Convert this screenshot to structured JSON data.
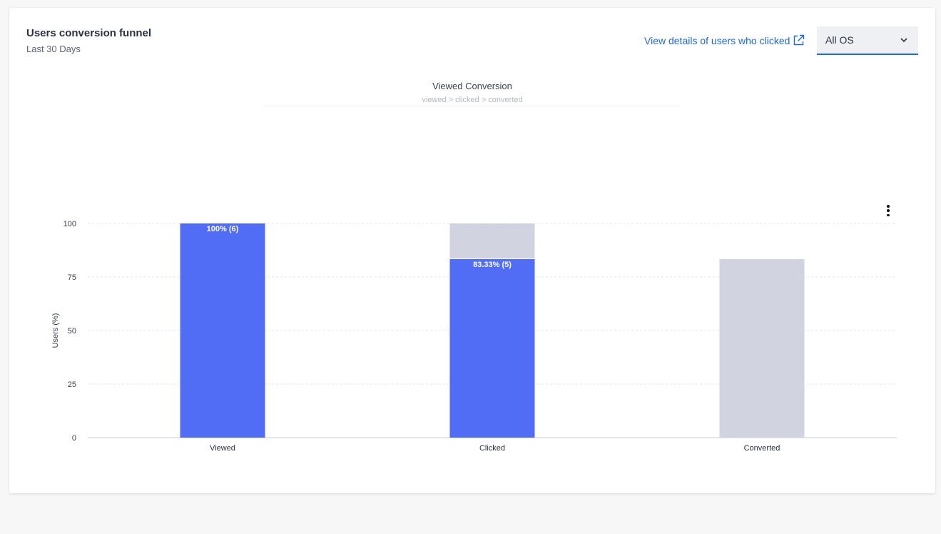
{
  "card": {
    "title": "Users conversion funnel",
    "subtitle": "Last 30 Days",
    "details_link": "View details of users who clicked",
    "os_select": {
      "selected": "All OS"
    }
  },
  "colors": {
    "primary_bar": "#516df5",
    "remainder_bar": "#d1d3e0",
    "link": "#1e6ad6"
  },
  "icons": {
    "external_link": "external-link-icon",
    "dropdown": "chevron-down-icon",
    "menu": "kebab-menu-icon"
  },
  "chart_data": {
    "type": "bar",
    "title": "Viewed Conversion",
    "subtitle": "viewed > clicked > converted",
    "xlabel": "",
    "ylabel": "Users (%)",
    "ylim": [
      0,
      100
    ],
    "yticks": [
      0,
      25,
      50,
      75,
      100
    ],
    "grid": true,
    "stacked": true,
    "categories": [
      "Viewed",
      "Clicked",
      "Converted"
    ],
    "series": [
      {
        "values": [
          100,
          83.33,
          0
        ],
        "color": "#516df5"
      },
      {
        "values": [
          0,
          16.67,
          83.33
        ],
        "color": "#d1d3e0"
      }
    ],
    "data_labels": [
      "100% (6)",
      "83.33% (5)",
      ""
    ]
  }
}
